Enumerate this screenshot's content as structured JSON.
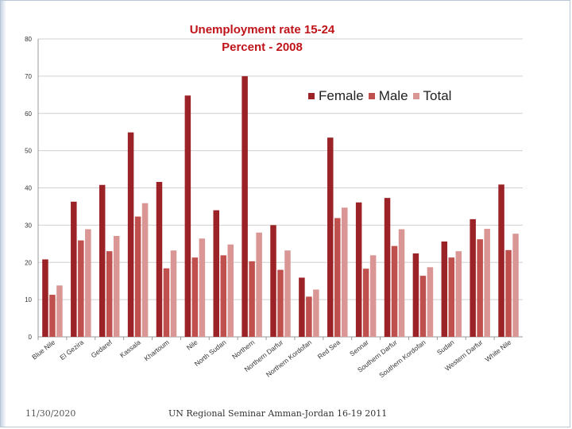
{
  "slide": {
    "footer_date": "11/30/2020",
    "footer_text": "UN Regional Seminar Amman-Jordan 16-19 2011"
  },
  "chart_data": {
    "type": "bar",
    "title": "Unemployment rate 15-24",
    "subtitle": "Percent - 2008",
    "xlabel": "",
    "ylabel": "",
    "ylim": [
      0,
      80
    ],
    "yticks": [
      0,
      10,
      20,
      30,
      40,
      50,
      60,
      70,
      80
    ],
    "grid": true,
    "legend_position": "top-right",
    "categories": [
      "Blue Nile",
      "El Gezira",
      "Gedaref",
      "Kassala",
      "Khartoum",
      "Nile",
      "North Sudan",
      "Northern",
      "Northern Darfur",
      "Northern Kordofan",
      "Red Sea",
      "Sennar",
      "Southern Darfur",
      "Southern Kordofan",
      "Sudan",
      "Western Darfur",
      "White Nile"
    ],
    "series": [
      {
        "name": "Female",
        "color": "#9b2226",
        "values": [
          20.8,
          36.3,
          40.8,
          54.9,
          41.6,
          64.8,
          34.0,
          70.0,
          30.0,
          15.9,
          53.5,
          36.1,
          37.3,
          22.4,
          25.6,
          31.6,
          40.9
        ]
      },
      {
        "name": "Male",
        "color": "#c0504d",
        "values": [
          11.3,
          25.9,
          23.0,
          32.3,
          18.4,
          21.3,
          21.9,
          20.3,
          18.0,
          10.8,
          31.9,
          18.3,
          24.4,
          16.4,
          21.3,
          26.2,
          23.3
        ]
      },
      {
        "name": "Total",
        "color": "#d99694",
        "values": [
          13.8,
          28.9,
          27.1,
          35.9,
          23.2,
          26.4,
          24.8,
          28.0,
          23.2,
          12.7,
          34.7,
          21.9,
          28.9,
          18.7,
          23.0,
          29.0,
          27.7
        ]
      }
    ]
  }
}
